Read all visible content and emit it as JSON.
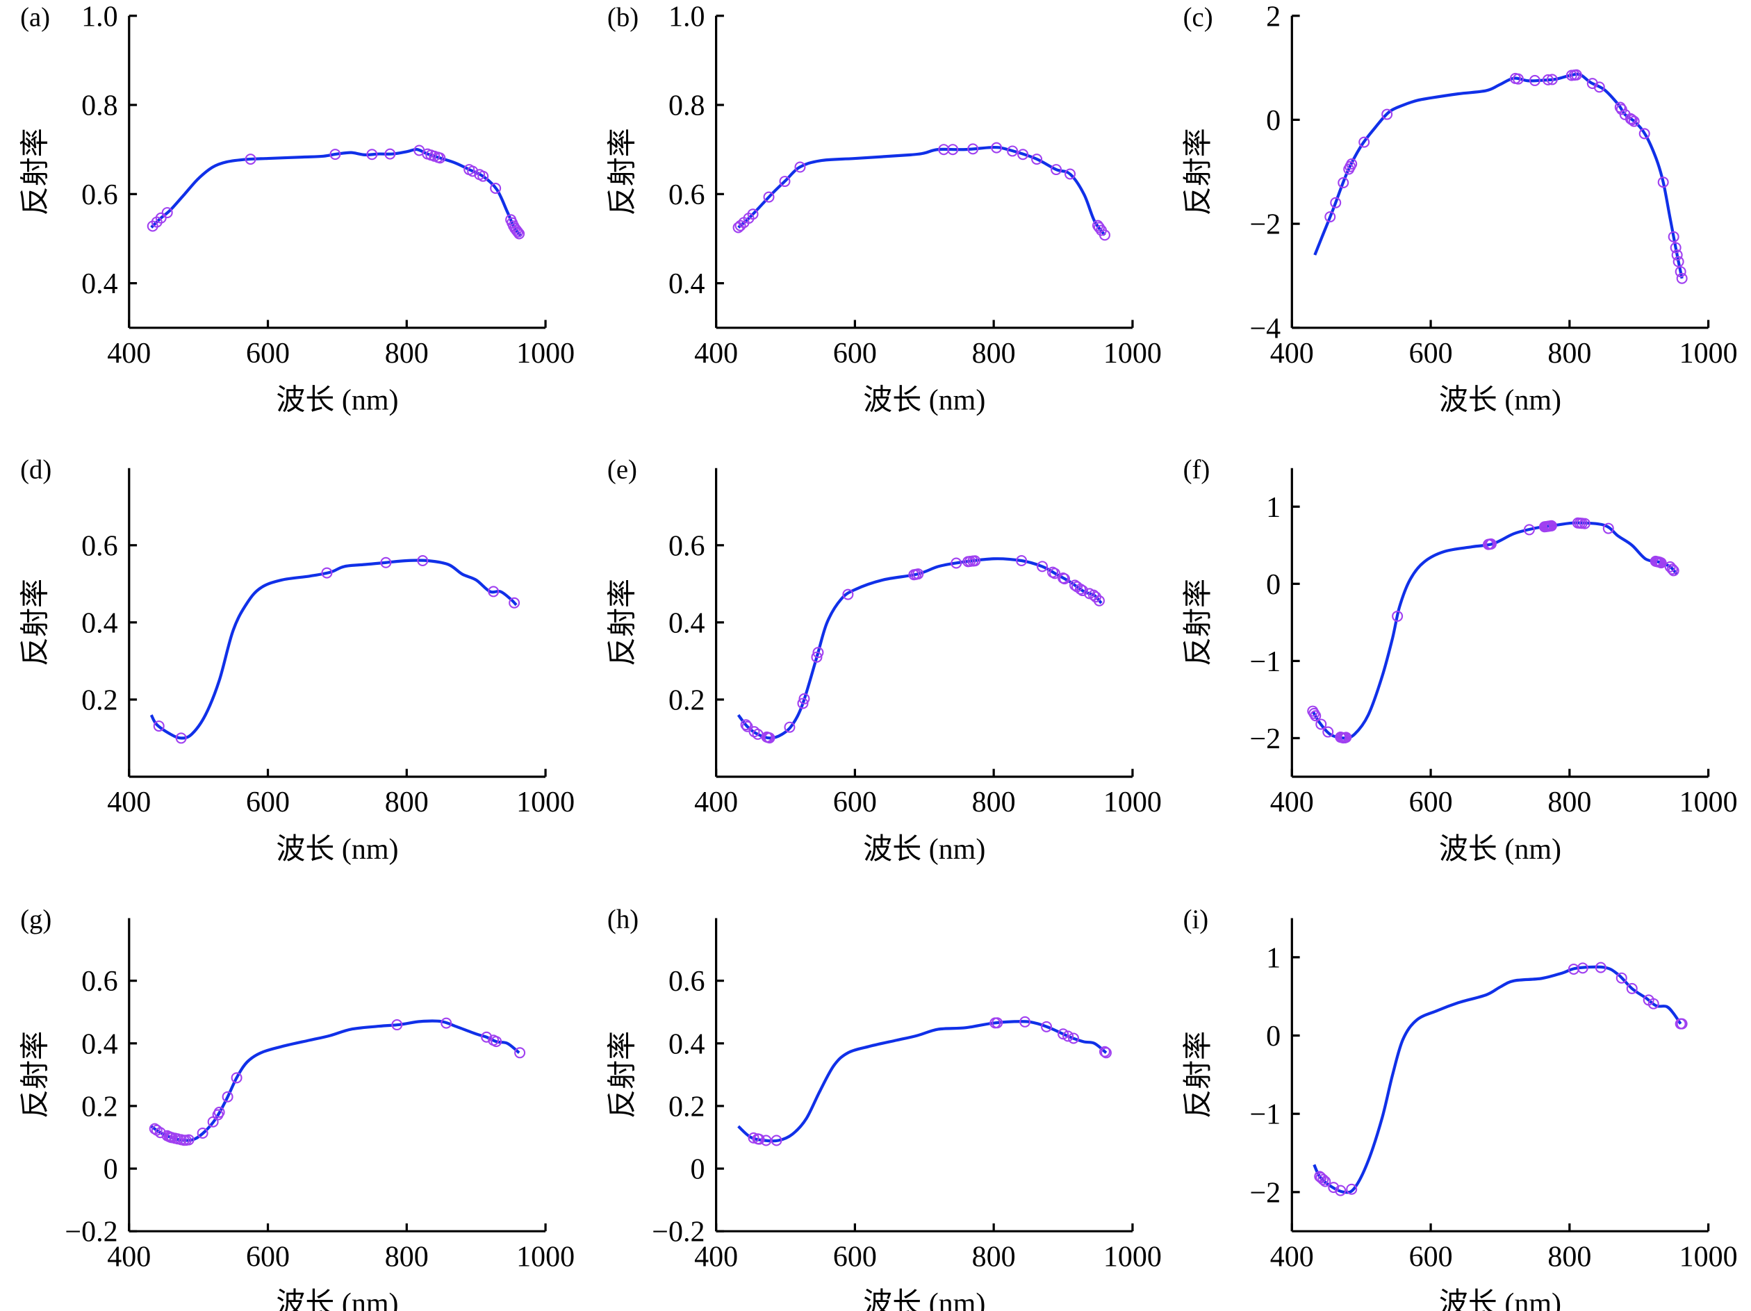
{
  "colors": {
    "curve": "#1030e8",
    "marker": "#a040f0",
    "axis": "#000000"
  },
  "chart_data": [
    {
      "type": "line",
      "panel_label": "(a)",
      "xlabel": "波长 (nm)",
      "ylabel": "反射率",
      "xlim": [
        400,
        1000
      ],
      "ylim": [
        0.3,
        1.0
      ],
      "xticks": [
        400,
        600,
        800,
        1000
      ],
      "xtick_labels": [
        "400",
        "600",
        "800",
        "1000"
      ],
      "yticks": [
        0.4,
        0.6,
        0.8,
        1.0
      ],
      "ytick_labels": [
        "0.4",
        "0.6",
        "0.8",
        "1.0"
      ],
      "curve": [
        [
          432,
          0.525
        ],
        [
          445,
          0.545
        ],
        [
          460,
          0.565
        ],
        [
          480,
          0.6
        ],
        [
          500,
          0.635
        ],
        [
          520,
          0.66
        ],
        [
          540,
          0.672
        ],
        [
          570,
          0.678
        ],
        [
          600,
          0.68
        ],
        [
          650,
          0.683
        ],
        [
          680,
          0.685
        ],
        [
          700,
          0.69
        ],
        [
          720,
          0.693
        ],
        [
          740,
          0.688
        ],
        [
          760,
          0.69
        ],
        [
          780,
          0.69
        ],
        [
          800,
          0.695
        ],
        [
          815,
          0.7
        ],
        [
          830,
          0.69
        ],
        [
          850,
          0.68
        ],
        [
          870,
          0.67
        ],
        [
          890,
          0.655
        ],
        [
          910,
          0.64
        ],
        [
          930,
          0.61
        ],
        [
          945,
          0.56
        ],
        [
          955,
          0.525
        ],
        [
          965,
          0.505
        ]
      ],
      "markers_x": [
        434,
        440,
        446,
        455,
        575,
        697,
        750,
        776,
        818,
        830,
        835,
        840,
        845,
        848,
        890,
        895,
        905,
        910,
        928,
        950,
        952,
        954,
        956,
        958,
        960,
        962
      ]
    },
    {
      "type": "line",
      "panel_label": "(b)",
      "xlabel": "波长 (nm)",
      "ylabel": "反射率",
      "xlim": [
        400,
        1000
      ],
      "ylim": [
        0.3,
        1.0
      ],
      "xticks": [
        400,
        600,
        800,
        1000
      ],
      "xtick_labels": [
        "400",
        "600",
        "800",
        "1000"
      ],
      "yticks": [
        0.4,
        0.6,
        0.8,
        1.0
      ],
      "ytick_labels": [
        "0.4",
        "0.6",
        "0.8",
        "1.0"
      ],
      "curve": [
        [
          432,
          0.525
        ],
        [
          450,
          0.55
        ],
        [
          480,
          0.6
        ],
        [
          500,
          0.63
        ],
        [
          520,
          0.66
        ],
        [
          550,
          0.675
        ],
        [
          600,
          0.68
        ],
        [
          680,
          0.688
        ],
        [
          700,
          0.692
        ],
        [
          720,
          0.7
        ],
        [
          760,
          0.7
        ],
        [
          800,
          0.705
        ],
        [
          820,
          0.7
        ],
        [
          860,
          0.68
        ],
        [
          890,
          0.655
        ],
        [
          910,
          0.645
        ],
        [
          930,
          0.6
        ],
        [
          945,
          0.54
        ],
        [
          960,
          0.508
        ]
      ],
      "markers_x": [
        432,
        435,
        440,
        447,
        453,
        476,
        499,
        521,
        728,
        741,
        770,
        804,
        827,
        842,
        862,
        890,
        910,
        950,
        952,
        955,
        960
      ]
    },
    {
      "type": "line",
      "panel_label": "(c)",
      "xlabel": "波长 (nm)",
      "ylabel": "反射率",
      "xlim": [
        400,
        1000
      ],
      "ylim": [
        -4,
        2
      ],
      "xticks": [
        400,
        600,
        800,
        1000
      ],
      "xtick_labels": [
        "400",
        "600",
        "800",
        "1000"
      ],
      "yticks": [
        -4,
        -2,
        0,
        2
      ],
      "ytick_labels": [
        "−4",
        "−2",
        "0",
        "2"
      ],
      "curve": [
        [
          433,
          -2.6
        ],
        [
          445,
          -2.2
        ],
        [
          460,
          -1.7
        ],
        [
          480,
          -1.0
        ],
        [
          500,
          -0.5
        ],
        [
          520,
          -0.15
        ],
        [
          540,
          0.15
        ],
        [
          560,
          0.28
        ],
        [
          580,
          0.37
        ],
        [
          600,
          0.42
        ],
        [
          640,
          0.5
        ],
        [
          680,
          0.56
        ],
        [
          700,
          0.68
        ],
        [
          720,
          0.8
        ],
        [
          740,
          0.75
        ],
        [
          760,
          0.76
        ],
        [
          780,
          0.78
        ],
        [
          800,
          0.85
        ],
        [
          815,
          0.87
        ],
        [
          830,
          0.72
        ],
        [
          850,
          0.58
        ],
        [
          870,
          0.3
        ],
        [
          880,
          0.1
        ],
        [
          895,
          -0.05
        ],
        [
          910,
          -0.3
        ],
        [
          925,
          -0.75
        ],
        [
          935,
          -1.2
        ],
        [
          945,
          -1.9
        ],
        [
          955,
          -2.6
        ],
        [
          962,
          -3.05
        ]
      ],
      "markers_x": [
        455,
        463,
        474,
        482,
        484,
        486,
        504,
        537,
        722,
        726,
        750,
        769,
        775,
        803,
        807,
        810,
        833,
        843,
        873,
        875,
        880,
        888,
        890,
        893,
        908,
        935,
        950,
        953,
        955,
        957,
        960,
        962
      ]
    },
    {
      "type": "line",
      "panel_label": "(d)",
      "xlabel": "波长 (nm)",
      "ylabel": "反射率",
      "xlim": [
        400,
        1000
      ],
      "ylim": [
        0,
        0.8
      ],
      "xticks": [
        400,
        600,
        800,
        1000
      ],
      "xtick_labels": [
        "400",
        "600",
        "800",
        "1000"
      ],
      "yticks": [
        0.2,
        0.4,
        0.6
      ],
      "ytick_labels": [
        "0.2",
        "0.4",
        "0.6"
      ],
      "curve": [
        [
          432,
          0.16
        ],
        [
          440,
          0.135
        ],
        [
          460,
          0.11
        ],
        [
          475,
          0.1
        ],
        [
          490,
          0.11
        ],
        [
          510,
          0.16
        ],
        [
          530,
          0.25
        ],
        [
          550,
          0.38
        ],
        [
          570,
          0.45
        ],
        [
          590,
          0.49
        ],
        [
          620,
          0.51
        ],
        [
          660,
          0.52
        ],
        [
          690,
          0.53
        ],
        [
          710,
          0.545
        ],
        [
          740,
          0.55
        ],
        [
          770,
          0.555
        ],
        [
          800,
          0.56
        ],
        [
          830,
          0.56
        ],
        [
          860,
          0.55
        ],
        [
          880,
          0.525
        ],
        [
          900,
          0.51
        ],
        [
          920,
          0.48
        ],
        [
          935,
          0.48
        ],
        [
          950,
          0.46
        ],
        [
          958,
          0.445
        ]
      ],
      "markers_x": [
        443,
        475,
        685,
        770,
        823,
        925,
        955
      ]
    },
    {
      "type": "line",
      "panel_label": "(e)",
      "xlabel": "波长 (nm)",
      "ylabel": "反射率",
      "xlim": [
        400,
        1000
      ],
      "ylim": [
        0,
        0.8
      ],
      "xticks": [
        400,
        600,
        800,
        1000
      ],
      "xtick_labels": [
        "400",
        "600",
        "800",
        "1000"
      ],
      "yticks": [
        0.2,
        0.4,
        0.6
      ],
      "ytick_labels": [
        "0.2",
        "0.4",
        "0.6"
      ],
      "curve": [
        [
          432,
          0.16
        ],
        [
          445,
          0.13
        ],
        [
          460,
          0.11
        ],
        [
          478,
          0.1
        ],
        [
          495,
          0.11
        ],
        [
          510,
          0.135
        ],
        [
          525,
          0.19
        ],
        [
          545,
          0.31
        ],
        [
          560,
          0.4
        ],
        [
          580,
          0.46
        ],
        [
          600,
          0.485
        ],
        [
          640,
          0.51
        ],
        [
          690,
          0.525
        ],
        [
          720,
          0.545
        ],
        [
          750,
          0.555
        ],
        [
          800,
          0.565
        ],
        [
          840,
          0.56
        ],
        [
          870,
          0.545
        ],
        [
          890,
          0.525
        ],
        [
          910,
          0.505
        ],
        [
          930,
          0.48
        ],
        [
          945,
          0.47
        ],
        [
          955,
          0.45
        ]
      ],
      "markers_x": [
        443,
        445,
        455,
        460,
        473,
        475,
        477,
        506,
        525,
        527,
        545,
        547,
        590,
        685,
        688,
        691,
        746,
        763,
        766,
        770,
        773,
        840,
        870,
        885,
        888,
        900,
        902,
        917,
        920,
        925,
        928,
        938,
        944,
        947,
        952
      ]
    },
    {
      "type": "line",
      "panel_label": "(f)",
      "xlabel": "波长 (nm)",
      "ylabel": "反射率",
      "xlim": [
        400,
        1000
      ],
      "ylim": [
        -2.5,
        1.5
      ],
      "xticks": [
        400,
        600,
        800,
        1000
      ],
      "xtick_labels": [
        "400",
        "600",
        "800",
        "1000"
      ],
      "yticks": [
        -2,
        -1,
        0,
        1
      ],
      "ytick_labels": [
        "−2",
        "−1",
        "0",
        "1"
      ],
      "curve": [
        [
          430,
          -1.65
        ],
        [
          440,
          -1.8
        ],
        [
          455,
          -1.95
        ],
        [
          475,
          -2.0
        ],
        [
          490,
          -1.95
        ],
        [
          510,
          -1.7
        ],
        [
          530,
          -1.2
        ],
        [
          545,
          -0.7
        ],
        [
          555,
          -0.3
        ],
        [
          570,
          0.05
        ],
        [
          590,
          0.28
        ],
        [
          620,
          0.42
        ],
        [
          660,
          0.48
        ],
        [
          690,
          0.52
        ],
        [
          720,
          0.65
        ],
        [
          750,
          0.72
        ],
        [
          780,
          0.76
        ],
        [
          810,
          0.79
        ],
        [
          850,
          0.76
        ],
        [
          870,
          0.62
        ],
        [
          890,
          0.5
        ],
        [
          910,
          0.32
        ],
        [
          930,
          0.28
        ],
        [
          945,
          0.22
        ],
        [
          955,
          0.12
        ]
      ],
      "markers_x": [
        430,
        432,
        434,
        442,
        452,
        470,
        472,
        474,
        476,
        478,
        552,
        683,
        685,
        687,
        742,
        764,
        766,
        768,
        770,
        772,
        774,
        812,
        815,
        818,
        822,
        856,
        924,
        926,
        928,
        930,
        932,
        945,
        948,
        950
      ]
    },
    {
      "type": "line",
      "panel_label": "(g)",
      "xlabel": "波长 (nm)",
      "ylabel": "反射率",
      "xlim": [
        400,
        1000
      ],
      "ylim": [
        -0.2,
        0.8
      ],
      "xticks": [
        400,
        600,
        800,
        1000
      ],
      "xtick_labels": [
        "400",
        "600",
        "800",
        "1000"
      ],
      "yticks": [
        -0.2,
        0,
        0.2,
        0.4,
        0.6
      ],
      "ytick_labels": [
        "−0.2",
        "0",
        "0.2",
        "0.4",
        "0.6"
      ],
      "curve": [
        [
          432,
          0.135
        ],
        [
          445,
          0.115
        ],
        [
          460,
          0.1
        ],
        [
          480,
          0.09
        ],
        [
          495,
          0.095
        ],
        [
          510,
          0.12
        ],
        [
          525,
          0.16
        ],
        [
          540,
          0.22
        ],
        [
          555,
          0.29
        ],
        [
          570,
          0.34
        ],
        [
          590,
          0.37
        ],
        [
          620,
          0.39
        ],
        [
          660,
          0.41
        ],
        [
          690,
          0.425
        ],
        [
          720,
          0.445
        ],
        [
          760,
          0.455
        ],
        [
          790,
          0.46
        ],
        [
          820,
          0.47
        ],
        [
          850,
          0.47
        ],
        [
          870,
          0.455
        ],
        [
          900,
          0.43
        ],
        [
          915,
          0.42
        ],
        [
          930,
          0.405
        ],
        [
          945,
          0.4
        ],
        [
          962,
          0.37
        ]
      ],
      "markers_x": [
        437,
        440,
        445,
        455,
        458,
        460,
        462,
        466,
        470,
        475,
        479,
        482,
        486,
        506,
        521,
        528,
        530,
        542,
        555,
        786,
        857,
        915,
        925,
        929,
        963
      ]
    },
    {
      "type": "line",
      "panel_label": "(h)",
      "xlabel": "波长 (nm)",
      "ylabel": "反射率",
      "xlim": [
        400,
        1000
      ],
      "ylim": [
        -0.2,
        0.8
      ],
      "xticks": [
        400,
        600,
        800,
        1000
      ],
      "xtick_labels": [
        "400",
        "600",
        "800",
        "1000"
      ],
      "yticks": [
        -0.2,
        0,
        0.2,
        0.4,
        0.6
      ],
      "ytick_labels": [
        "−0.2",
        "0",
        "0.2",
        "0.4",
        "0.6"
      ],
      "curve": [
        [
          432,
          0.135
        ],
        [
          450,
          0.1
        ],
        [
          470,
          0.09
        ],
        [
          490,
          0.09
        ],
        [
          510,
          0.11
        ],
        [
          530,
          0.16
        ],
        [
          550,
          0.25
        ],
        [
          570,
          0.33
        ],
        [
          590,
          0.37
        ],
        [
          620,
          0.39
        ],
        [
          660,
          0.41
        ],
        [
          690,
          0.425
        ],
        [
          720,
          0.445
        ],
        [
          760,
          0.45
        ],
        [
          800,
          0.465
        ],
        [
          840,
          0.47
        ],
        [
          860,
          0.465
        ],
        [
          880,
          0.45
        ],
        [
          910,
          0.42
        ],
        [
          930,
          0.405
        ],
        [
          945,
          0.4
        ],
        [
          962,
          0.37
        ]
      ],
      "markers_x": [
        454,
        460,
        462,
        472,
        487,
        802,
        805,
        845,
        876,
        900,
        907,
        915,
        960,
        962
      ]
    },
    {
      "type": "line",
      "panel_label": "(i)",
      "xlabel": "波长 (nm)",
      "ylabel": "反射率",
      "xlim": [
        400,
        1000
      ],
      "ylim": [
        -2.5,
        1.5
      ],
      "xticks": [
        400,
        600,
        800,
        1000
      ],
      "xtick_labels": [
        "400",
        "600",
        "800",
        "1000"
      ],
      "yticks": [
        -2,
        -1,
        0,
        1
      ],
      "ytick_labels": [
        "−2",
        "−1",
        "0",
        "1"
      ],
      "curve": [
        [
          432,
          -1.65
        ],
        [
          440,
          -1.8
        ],
        [
          455,
          -1.92
        ],
        [
          475,
          -2.0
        ],
        [
          490,
          -1.95
        ],
        [
          510,
          -1.6
        ],
        [
          530,
          -1.05
        ],
        [
          545,
          -0.5
        ],
        [
          560,
          -0.05
        ],
        [
          580,
          0.2
        ],
        [
          610,
          0.32
        ],
        [
          640,
          0.42
        ],
        [
          680,
          0.52
        ],
        [
          700,
          0.62
        ],
        [
          720,
          0.7
        ],
        [
          760,
          0.73
        ],
        [
          790,
          0.8
        ],
        [
          810,
          0.86
        ],
        [
          850,
          0.87
        ],
        [
          870,
          0.78
        ],
        [
          890,
          0.6
        ],
        [
          910,
          0.48
        ],
        [
          925,
          0.38
        ],
        [
          940,
          0.37
        ],
        [
          950,
          0.28
        ],
        [
          960,
          0.15
        ]
      ],
      "markers_x": [
        440,
        442,
        445,
        448,
        460,
        470,
        486,
        806,
        819,
        845,
        875,
        890,
        914,
        921,
        960,
        962
      ]
    }
  ]
}
